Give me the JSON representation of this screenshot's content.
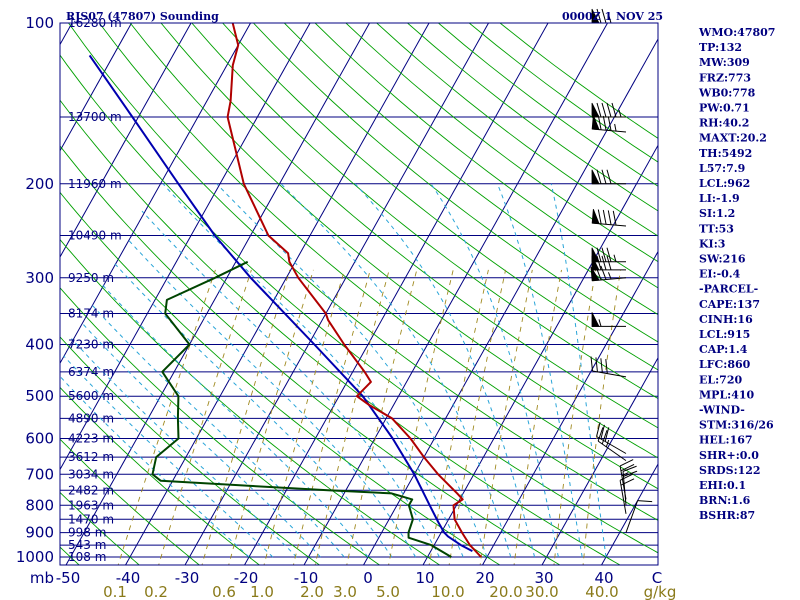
{
  "header": {
    "station": "RJS07 (47807) Sounding",
    "time": "0000Z  1 NOV 25"
  },
  "chart_data": {
    "type": "skew-t",
    "title": "RJS07 (47807) Sounding",
    "valid_time": "0000Z  1 NOV 25",
    "pressure_unit": "mb",
    "mixing_ratio_unit": "g/kg",
    "pressure_levels": [
      100,
      200,
      300,
      400,
      500,
      600,
      700,
      800,
      900,
      1000
    ],
    "pressure_labels": [
      "100",
      "200",
      "300",
      "400",
      "500",
      "600",
      "700",
      "800",
      "900",
      "1000"
    ],
    "height_levels": [
      {
        "p": 100,
        "label": "16280 m"
      },
      {
        "p": 150,
        "label": "13700 m"
      },
      {
        "p": 200,
        "label": "11960 m"
      },
      {
        "p": 250,
        "label": "10490 m"
      },
      {
        "p": 300,
        "label": "9250 m"
      },
      {
        "p": 350,
        "label": "8174 m"
      },
      {
        "p": 400,
        "label": "7230 m"
      },
      {
        "p": 450,
        "label": "6374 m"
      },
      {
        "p": 500,
        "label": "5600 m"
      },
      {
        "p": 550,
        "label": "4890 m"
      },
      {
        "p": 600,
        "label": "4223 m"
      },
      {
        "p": 650,
        "label": "3612 m"
      },
      {
        "p": 700,
        "label": "3034 m"
      },
      {
        "p": 750,
        "label": "2482 m"
      },
      {
        "p": 800,
        "label": "1963 m"
      },
      {
        "p": 850,
        "label": "1470 m"
      },
      {
        "p": 900,
        "label": "998 m"
      },
      {
        "p": 950,
        "label": "543 m"
      },
      {
        "p": 1000,
        "label": "108 m"
      }
    ],
    "temperature_labels": [
      "mb",
      "-50",
      "-40",
      "-30",
      "-20",
      "-10",
      "0",
      "10",
      "20",
      "30",
      "40",
      "C"
    ],
    "mixing_ratio_labels": [
      "0.1",
      "0.2",
      "0.6",
      "1.0",
      "2.0",
      "3.0",
      "5.0",
      "10.0",
      "20.0",
      "30.0",
      "40.0",
      "g/kg"
    ],
    "temperature_profile": [
      {
        "p": 1000,
        "t": 19
      },
      {
        "p": 950,
        "t": 16
      },
      {
        "p": 900,
        "t": 13.5
      },
      {
        "p": 850,
        "t": 11
      },
      {
        "p": 800,
        "t": 9.5
      },
      {
        "p": 780,
        "t": 10.5
      },
      {
        "p": 760,
        "t": 9
      },
      {
        "p": 700,
        "t": 4
      },
      {
        "p": 650,
        "t": 0
      },
      {
        "p": 600,
        "t": -4
      },
      {
        "p": 550,
        "t": -9
      },
      {
        "p": 520,
        "t": -14
      },
      {
        "p": 500,
        "t": -17
      },
      {
        "p": 470,
        "t": -16
      },
      {
        "p": 450,
        "t": -18
      },
      {
        "p": 400,
        "t": -24
      },
      {
        "p": 360,
        "t": -29
      },
      {
        "p": 350,
        "t": -30
      },
      {
        "p": 300,
        "t": -38
      },
      {
        "p": 280,
        "t": -41
      },
      {
        "p": 270,
        "t": -42
      },
      {
        "p": 250,
        "t": -47
      },
      {
        "p": 200,
        "t": -56
      },
      {
        "p": 150,
        "t": -65
      },
      {
        "p": 140,
        "t": -66
      },
      {
        "p": 120,
        "t": -69
      },
      {
        "p": 110,
        "t": -70
      },
      {
        "p": 100,
        "t": -73
      }
    ],
    "dewpoint_profile": [
      {
        "p": 1000,
        "t": 14
      },
      {
        "p": 950,
        "t": 9.5
      },
      {
        "p": 920,
        "t": 5
      },
      {
        "p": 900,
        "t": 4.5
      },
      {
        "p": 850,
        "t": 4
      },
      {
        "p": 800,
        "t": 2
      },
      {
        "p": 780,
        "t": 2
      },
      {
        "p": 760,
        "t": -2
      },
      {
        "p": 750,
        "t": -13
      },
      {
        "p": 720,
        "t": -42
      },
      {
        "p": 700,
        "t": -44
      },
      {
        "p": 650,
        "t": -45
      },
      {
        "p": 600,
        "t": -43
      },
      {
        "p": 550,
        "t": -45
      },
      {
        "p": 500,
        "t": -47
      },
      {
        "p": 450,
        "t": -52
      },
      {
        "p": 400,
        "t": -50
      },
      {
        "p": 350,
        "t": -57
      },
      {
        "p": 330,
        "t": -58
      },
      {
        "p": 300,
        "t": -52
      },
      {
        "p": 280,
        "t": -48
      }
    ],
    "parcel_profile": [
      {
        "p": 975,
        "t": 17
      },
      {
        "p": 950,
        "t": 14.5
      },
      {
        "p": 915,
        "t": 11.5
      },
      {
        "p": 900,
        "t": 10.5
      },
      {
        "p": 860,
        "t": 8.5
      },
      {
        "p": 800,
        "t": 5.5
      },
      {
        "p": 700,
        "t": 0
      },
      {
        "p": 600,
        "t": -7
      },
      {
        "p": 500,
        "t": -16
      },
      {
        "p": 400,
        "t": -29
      },
      {
        "p": 300,
        "t": -46
      },
      {
        "p": 250,
        "t": -56
      },
      {
        "p": 200,
        "t": -67
      },
      {
        "p": 150,
        "t": -81
      },
      {
        "p": 115,
        "t": -94
      }
    ],
    "wind_profile": [
      {
        "p": 100,
        "dir": 270,
        "spd": 75
      },
      {
        "p": 150,
        "dir": 270,
        "spd": 95
      },
      {
        "p": 160,
        "dir": 275,
        "spd": 85
      },
      {
        "p": 200,
        "dir": 270,
        "spd": 80
      },
      {
        "p": 240,
        "dir": 275,
        "spd": 90
      },
      {
        "p": 280,
        "dir": 270,
        "spd": 85
      },
      {
        "p": 290,
        "dir": 270,
        "spd": 80
      },
      {
        "p": 300,
        "dir": 265,
        "spd": 75
      },
      {
        "p": 370,
        "dir": 270,
        "spd": 55
      },
      {
        "p": 460,
        "dir": 280,
        "spd": 40
      },
      {
        "p": 640,
        "dir": 300,
        "spd": 30
      },
      {
        "p": 660,
        "dir": 305,
        "spd": 25
      },
      {
        "p": 780,
        "dir": 350,
        "spd": 25
      },
      {
        "p": 800,
        "dir": 355,
        "spd": 20
      },
      {
        "p": 830,
        "dir": 350,
        "spd": 20
      },
      {
        "p": 900,
        "dir": 20,
        "spd": 10
      }
    ]
  },
  "indices": [
    "WMO:47807",
    "TP:132",
    "MW:309",
    "FRZ:773",
    "WB0:778",
    "PW:0.71",
    "RH:40.2",
    "MAXT:20.2",
    "TH:5492",
    "L57:7.9",
    "LCL:962",
    "LI:-1.9",
    "SI:1.2",
    "TT:53",
    "KI:3",
    "SW:216",
    "EI:-0.4",
    "-PARCEL-",
    "CAPE:137",
    "CINH:16",
    "LCL:915",
    "CAP:1.4",
    "LFC:860",
    "EL:720",
    "MPL:410",
    "-WIND-",
    "STM:316/26",
    "HEL:167",
    "SHR+:0.0",
    "SRDS:122",
    "EHI:0.1",
    "BRN:1.6",
    "BSHR:87"
  ],
  "colors": {
    "isobar": "#000080",
    "isotherm": "#000080",
    "dry_adiabat": "#00a000",
    "moist_adiabat": "#2aa5d8",
    "mixing_ratio": "#a08a20",
    "temperature": "#b00000",
    "dewpoint": "#004400",
    "parcel": "#0000b0",
    "label": "#000080"
  }
}
